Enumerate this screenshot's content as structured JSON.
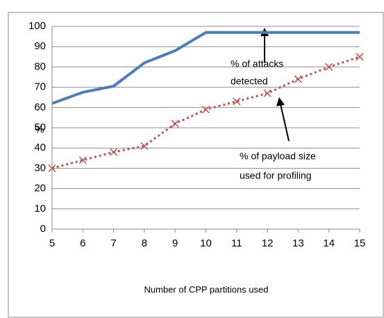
{
  "chart_data": {
    "type": "line",
    "y_label": "%",
    "x_label": "Number of CPP partitions used",
    "x": [
      5,
      6,
      7,
      8,
      9,
      10,
      11,
      12,
      13,
      14,
      15
    ],
    "xlim": [
      5,
      15
    ],
    "xticks": [
      5,
      6,
      7,
      8,
      9,
      10,
      11,
      12,
      13,
      14,
      15
    ],
    "ylim": [
      0,
      100
    ],
    "yticks": [
      0,
      10,
      20,
      30,
      40,
      50,
      60,
      70,
      80,
      90,
      100
    ],
    "grid": true,
    "series": [
      {
        "name": "% of attacks detected",
        "color": "#4a7ebb",
        "style": "solid",
        "values": [
          62,
          67.5,
          70.5,
          82,
          88,
          97,
          97,
          97,
          97,
          97,
          97
        ]
      },
      {
        "name": "% of payload size used for profiling",
        "color": "#c0504d",
        "style": "dotted",
        "values": [
          30,
          34,
          38,
          41,
          52,
          59,
          63,
          67,
          74,
          80,
          85
        ]
      }
    ],
    "annotations": [
      [
        "% of attacks",
        "detected"
      ],
      [
        "% of payload size",
        "used for profiling"
      ]
    ]
  }
}
